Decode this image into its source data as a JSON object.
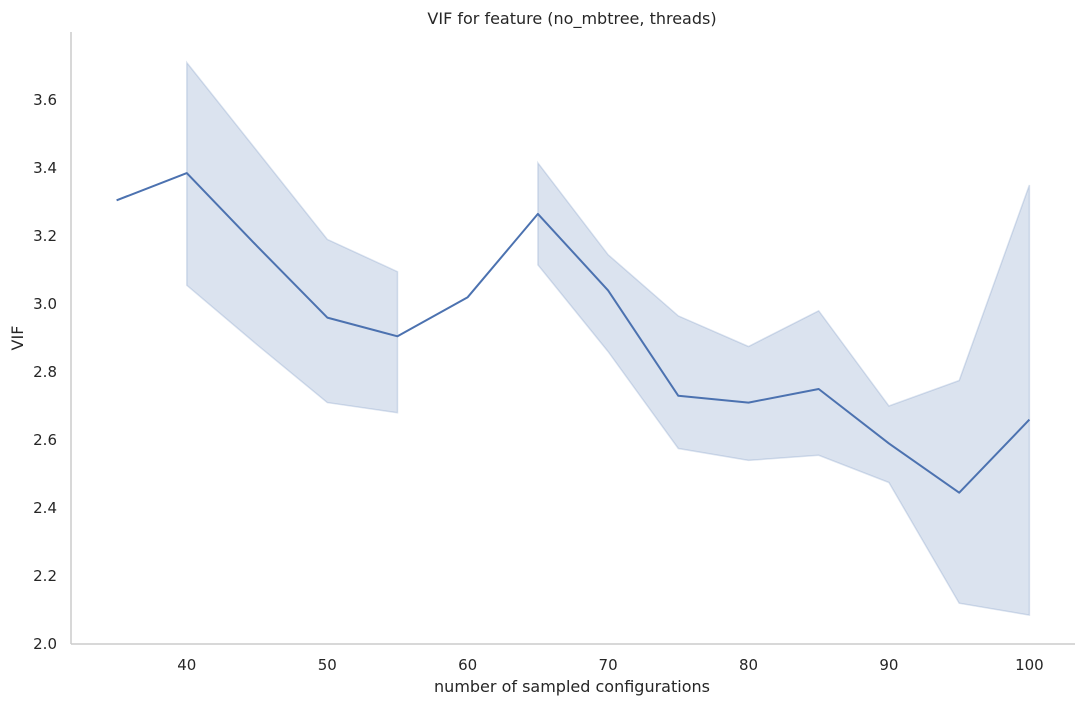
{
  "chart_data": {
    "type": "line",
    "title": "VIF for feature (no_mbtree, threads)",
    "xlabel": "number of sampled configurations",
    "ylabel": "VIF",
    "xlim": [
      31.75,
      103.25
    ],
    "ylim": [
      2.0,
      3.8
    ],
    "xticks": [
      40,
      50,
      60,
      70,
      80,
      90,
      100
    ],
    "xtick_labels": [
      "40",
      "50",
      "60",
      "70",
      "80",
      "90",
      "100"
    ],
    "yticks": [
      2.0,
      2.2,
      2.4,
      2.6,
      2.8,
      3.0,
      3.2,
      3.4,
      3.6
    ],
    "ytick_labels": [
      "2.0",
      "2.2",
      "2.4",
      "2.6",
      "2.8",
      "3.0",
      "3.2",
      "3.4",
      "3.6"
    ],
    "grid": false,
    "line_color": "#4c72b0",
    "band_color": "#4c72b0",
    "series": [
      {
        "x": [
          35,
          40,
          45,
          50,
          55,
          60,
          65,
          70,
          75,
          80,
          85,
          90,
          95,
          100
        ],
        "values": [
          3.305,
          3.385,
          3.17,
          2.96,
          2.905,
          3.02,
          3.265,
          3.04,
          2.73,
          2.71,
          2.75,
          2.59,
          2.445,
          2.66
        ]
      }
    ],
    "confidence_bands": [
      {
        "x": [
          40,
          45,
          50,
          55
        ],
        "lower": [
          3.055,
          2.88,
          2.71,
          2.68
        ],
        "upper": [
          3.71,
          3.45,
          3.19,
          3.095
        ]
      },
      {
        "x": [
          65,
          70,
          75,
          80,
          85,
          90,
          95,
          100
        ],
        "lower": [
          3.115,
          2.86,
          2.575,
          2.54,
          2.555,
          2.475,
          2.12,
          2.085
        ],
        "upper": [
          3.415,
          3.145,
          2.965,
          2.875,
          2.98,
          2.7,
          2.775,
          3.35
        ]
      }
    ]
  }
}
